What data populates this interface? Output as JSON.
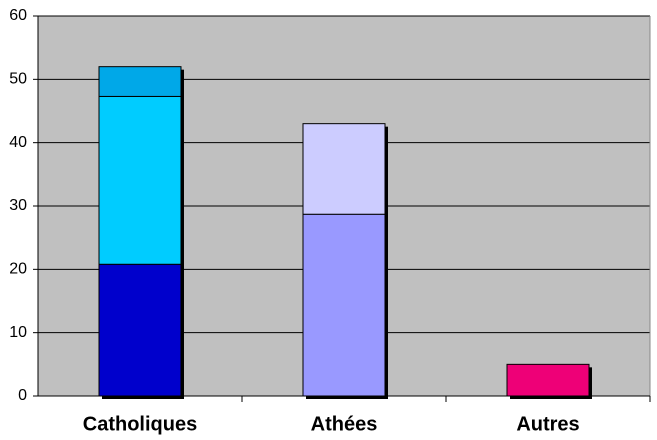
{
  "chart_data": {
    "type": "stacked_bar",
    "categories": [
      "Catholiques",
      "Athées",
      "Autres"
    ],
    "series": [
      {
        "color": "#0000cc",
        "values": [
          20.8,
          null,
          null
        ]
      },
      {
        "color": "#00ccff",
        "values": [
          26.5,
          null,
          null
        ]
      },
      {
        "color": "#00a8e8",
        "values": [
          4.7,
          null,
          null
        ]
      },
      {
        "color": "#9999ff",
        "values": [
          null,
          28.7,
          null
        ]
      },
      {
        "color": "#ccccff",
        "values": [
          null,
          14.3,
          null
        ]
      },
      {
        "color": "#ee0077",
        "values": [
          null,
          null,
          5
        ]
      }
    ],
    "ylim": [
      0,
      60
    ],
    "yticks": [
      0,
      10,
      20,
      30,
      40,
      50,
      60
    ],
    "grid": true
  }
}
